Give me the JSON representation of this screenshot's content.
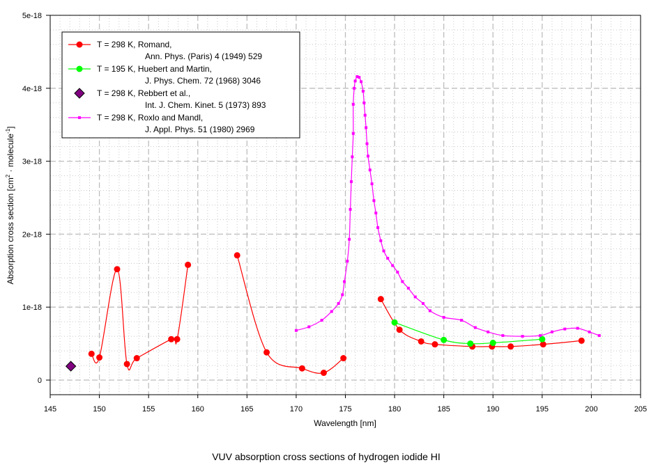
{
  "chart_data": {
    "type": "line",
    "title": "VUV absorption cross sections of hydrogen iodide HI",
    "xlabel": "Wavelength [nm]",
    "ylabel": "Absorption cross section [cm",
    "ylabel_sup1": "2",
    "ylabel_mid": " · molecule",
    "ylabel_sup2": "-1",
    "ylabel_end": "]",
    "xlim": [
      145,
      205
    ],
    "ylim": [
      0,
      5e-18
    ],
    "xticks": [
      "145",
      "150",
      "155",
      "160",
      "165",
      "170",
      "175",
      "180",
      "185",
      "190",
      "195",
      "200",
      "205"
    ],
    "xtick_values": [
      145,
      150,
      155,
      160,
      165,
      170,
      175,
      180,
      185,
      190,
      195,
      200,
      205
    ],
    "yticks": [
      "0",
      "1e-18",
      "2e-18",
      "3e-18",
      "4e-18",
      "5e-18"
    ],
    "ytick_values": [
      0,
      1e-18,
      2e-18,
      3e-18,
      4e-18,
      5e-18
    ],
    "grid": true,
    "legend_position": "top-left",
    "series": [
      {
        "name": "T = 298 K, Romand,",
        "ref": "Ann. Phys. (Paris) 4 (1949) 529",
        "color": "#ff0000",
        "marker": "circle",
        "segments": [
          [
            [
              149.2,
              3.6e-19
            ],
            [
              150.0,
              3.1e-19
            ],
            [
              151.8,
              1.52e-18
            ],
            [
              152.8,
              2.2e-19
            ],
            [
              153.8,
              3e-19
            ],
            [
              157.3,
              5.6e-19
            ],
            [
              157.9,
              5.6e-19
            ],
            [
              159.0,
              1.58e-18
            ]
          ],
          [
            [
              164.0,
              1.71e-18
            ],
            [
              167.0,
              3.8e-19
            ],
            [
              170.6,
              1.6e-19
            ],
            [
              172.8,
              1e-19
            ],
            [
              174.8,
              3e-19
            ]
          ],
          [
            [
              178.6,
              1.11e-18
            ],
            [
              180.5,
              6.9e-19
            ],
            [
              182.7,
              5.3e-19
            ],
            [
              184.1,
              4.9e-19
            ],
            [
              187.9,
              4.6e-19
            ],
            [
              189.9,
              4.6e-19
            ],
            [
              191.8,
              4.6e-19
            ],
            [
              195.1,
              4.9e-19
            ],
            [
              199.0,
              5.4e-19
            ]
          ]
        ]
      },
      {
        "name": "T = 195 K, Huebert and Martin,",
        "ref": "J. Phys. Chem. 72 (1968) 3046",
        "color": "#00ff00",
        "marker": "circle",
        "segments": [
          [
            [
              180.0,
              7.9e-19
            ],
            [
              185.0,
              5.5e-19
            ],
            [
              187.7,
              5e-19
            ],
            [
              190.0,
              5.1e-19
            ],
            [
              195.0,
              5.6e-19
            ]
          ]
        ]
      },
      {
        "name": "T = 298 K, Rebbert et al.,",
        "ref": "Int. J. Chem. Kinet. 5 (1973) 893",
        "color": "#800080",
        "marker": "diamond",
        "segments": [
          [
            [
              147.1,
              1.9e-19
            ]
          ]
        ]
      },
      {
        "name": "T = 298 K, Roxlo and Mandl,",
        "ref": "J. Appl. Phys. 51 (1980) 2969",
        "color": "#ff00ff",
        "marker": "small",
        "segments": [
          [
            [
              170.0,
              6.8e-19
            ],
            [
              171.3,
              7.3e-19
            ],
            [
              172.6,
              8.2e-19
            ],
            [
              173.6,
              9.4e-19
            ],
            [
              174.3,
              1.05e-18
            ],
            [
              174.7,
              1.17e-18
            ],
            [
              174.9,
              1.35e-18
            ],
            [
              175.2,
              1.63e-18
            ],
            [
              175.4,
              1.93e-18
            ],
            [
              175.5,
              2.34e-18
            ],
            [
              175.6,
              2.72e-18
            ],
            [
              175.7,
              3.06e-18
            ],
            [
              175.8,
              3.38e-18
            ],
            [
              175.8,
              3.78e-18
            ],
            [
              175.9,
              4e-18
            ],
            [
              176.0,
              4.1e-18
            ],
            [
              176.2,
              4.16e-18
            ],
            [
              176.4,
              4.15e-18
            ],
            [
              176.6,
              4.09e-18
            ],
            [
              176.8,
              3.96e-18
            ],
            [
              176.9,
              3.8e-18
            ],
            [
              177.0,
              3.63e-18
            ],
            [
              177.1,
              3.46e-18
            ],
            [
              177.2,
              3.24e-18
            ],
            [
              177.3,
              3.07e-18
            ],
            [
              177.5,
              2.88e-18
            ],
            [
              177.7,
              2.69e-18
            ],
            [
              177.9,
              2.46e-18
            ],
            [
              178.1,
              2.29e-18
            ],
            [
              178.3,
              2.09e-18
            ],
            [
              178.6,
              1.91e-18
            ],
            [
              178.9,
              1.77e-18
            ],
            [
              179.3,
              1.67e-18
            ],
            [
              179.8,
              1.57e-18
            ],
            [
              180.3,
              1.48e-18
            ],
            [
              180.8,
              1.35e-18
            ],
            [
              181.4,
              1.26e-18
            ],
            [
              182.1,
              1.14e-18
            ],
            [
              182.9,
              1.05e-18
            ],
            [
              183.6,
              9.5e-19
            ],
            [
              185.0,
              8.6e-19
            ],
            [
              186.8,
              8.2e-19
            ],
            [
              188.2,
              7.2e-19
            ],
            [
              189.5,
              6.6e-19
            ],
            [
              191.0,
              6.1e-19
            ],
            [
              193.0,
              6e-19
            ],
            [
              194.8,
              6.1e-19
            ],
            [
              196.0,
              6.6e-19
            ],
            [
              197.3,
              7e-19
            ],
            [
              198.6,
              7.1e-19
            ],
            [
              199.8,
              6.6e-19
            ],
            [
              200.8,
              6.1e-19
            ]
          ]
        ]
      }
    ]
  }
}
